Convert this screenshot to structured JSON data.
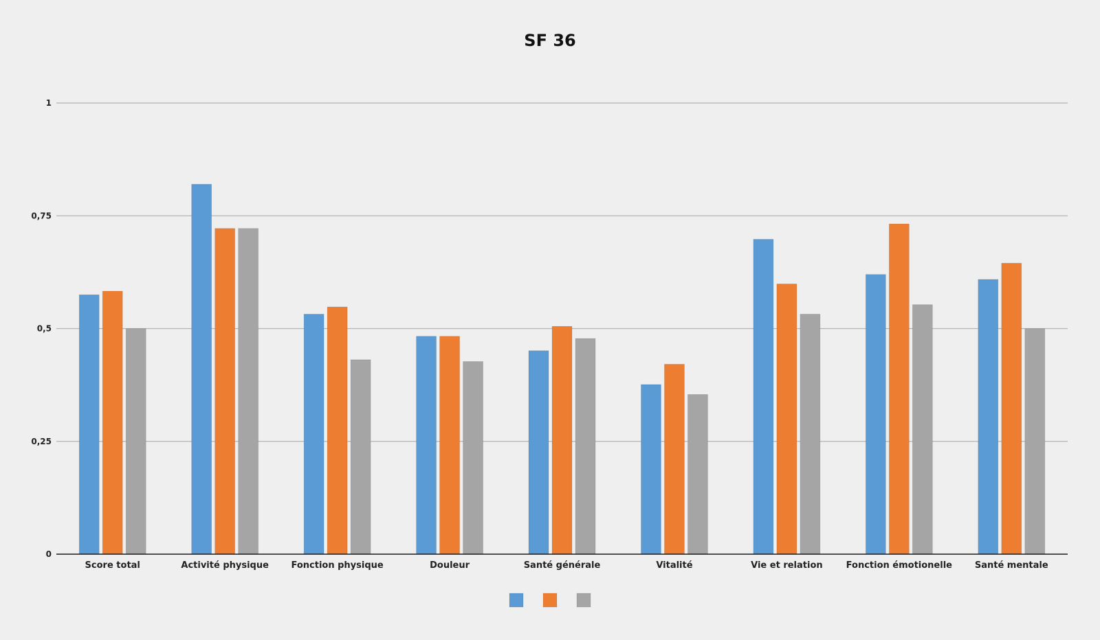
{
  "chart_data": {
    "type": "bar",
    "title": "SF 36",
    "xlabel": "",
    "ylabel": "",
    "ylim": [
      0,
      1
    ],
    "yticks": [
      0,
      0.25,
      0.5,
      0.75,
      1
    ],
    "ytick_labels": [
      "0",
      "0,25",
      "0,5",
      "0,75",
      "1"
    ],
    "grid": true,
    "legend_position": "bottom",
    "categories": [
      "Score total",
      "Activité physique",
      "Fonction physique",
      "Douleur",
      "Santé générale",
      "Vitalité",
      "Vie et relation",
      "Fonction émotionelle",
      "Santé mentale"
    ],
    "series": [
      {
        "color": "#5b9bd5",
        "values": [
          0.575,
          0.82,
          0.532,
          0.483,
          0.451,
          0.376,
          0.698,
          0.62,
          0.609
        ]
      },
      {
        "color": "#ed7d31",
        "values": [
          0.583,
          0.722,
          0.548,
          0.483,
          0.505,
          0.421,
          0.599,
          0.732,
          0.645
        ]
      },
      {
        "color": "#a5a5a5",
        "values": [
          0.5,
          0.722,
          0.431,
          0.427,
          0.478,
          0.354,
          0.532,
          0.553,
          0.5
        ]
      }
    ]
  }
}
